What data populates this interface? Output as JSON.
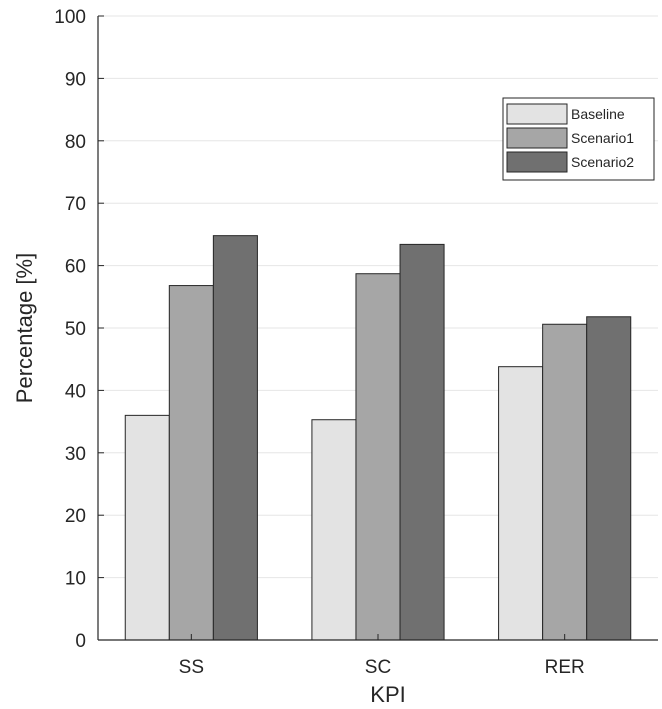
{
  "chart_data": {
    "type": "bar",
    "title": "",
    "xlabel": "KPI",
    "ylabel": "Percentage [%]",
    "categories": [
      "SS",
      "SC",
      "RER"
    ],
    "series": [
      {
        "name": "Baseline",
        "values": [
          36,
          35.3,
          43.8
        ],
        "color": "#e3e3e3"
      },
      {
        "name": "Scenario1",
        "values": [
          56.8,
          58.7,
          50.6
        ],
        "color": "#a6a6a6"
      },
      {
        "name": "Scenario2",
        "values": [
          64.8,
          63.4,
          51.8
        ],
        "color": "#707070"
      }
    ],
    "ylim": [
      0,
      100
    ],
    "yticks": [
      0,
      10,
      20,
      30,
      40,
      50,
      60,
      70,
      80,
      90,
      100
    ],
    "grid": true,
    "legend_position": "top-right"
  }
}
